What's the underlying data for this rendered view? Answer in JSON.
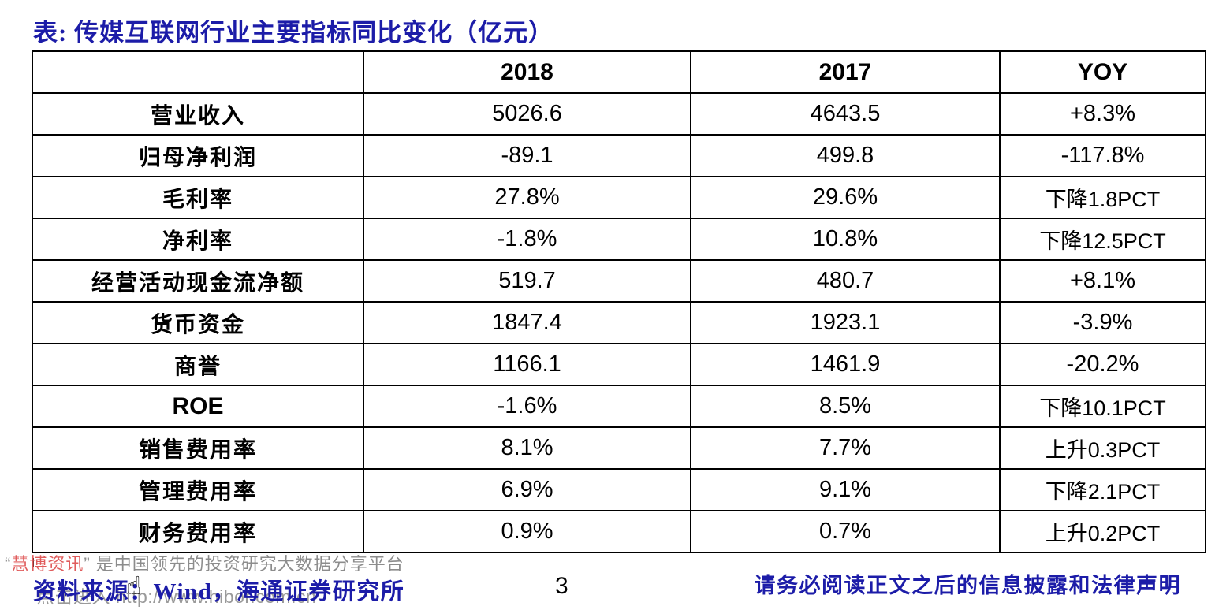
{
  "page": {
    "title": "表: 传媒互联网行业主要指标同比变化（亿元）",
    "page_number": "3"
  },
  "table": {
    "columns": [
      "",
      "2018",
      "2017",
      "YOY"
    ],
    "rows": [
      [
        "营业收入",
        "5026.6",
        "4643.5",
        "+8.3%"
      ],
      [
        "归母净利润",
        "-89.1",
        "499.8",
        "-117.8%"
      ],
      [
        "毛利率",
        "27.8%",
        "29.6%",
        "下降1.8PCT"
      ],
      [
        "净利率",
        "-1.8%",
        "10.8%",
        "下降12.5PCT"
      ],
      [
        "经营活动现金流净额",
        "519.7",
        "480.7",
        "+8.1%"
      ],
      [
        "货币资金",
        "1847.4",
        "1923.1",
        "-3.9%"
      ],
      [
        "商誉",
        "1166.1",
        "1461.9",
        "-20.2%"
      ],
      [
        "ROE",
        "-1.6%",
        "8.5%",
        "下降10.1PCT"
      ],
      [
        "销售费用率",
        "8.1%",
        "7.7%",
        "上升0.3PCT"
      ],
      [
        "管理费用率",
        "6.9%",
        "9.1%",
        "下降2.1PCT"
      ],
      [
        "财务费用率",
        "0.9%",
        "0.7%",
        "上升0.2PCT"
      ]
    ]
  },
  "footer": {
    "watermark_open_quote": "“",
    "watermark_brand": "慧博资讯",
    "watermark_rest": "” 是中国领先的投资研究大数据分享平台",
    "watermark_link": "点击进入 http://www.hibor.com.cn",
    "cursor_icon_glyph": "☝",
    "source_line": "资料来源：Wind，海通证券研究所",
    "disclaimer": "请务必阅读正文之后的信息披露和法律声明"
  },
  "colors": {
    "title_blue": "#1c1ca8",
    "footer_blue": "#1c1ca8",
    "watermark_gray": "#8c8c8c",
    "brand_red": "#e05c5c",
    "table_border": "#000000"
  }
}
